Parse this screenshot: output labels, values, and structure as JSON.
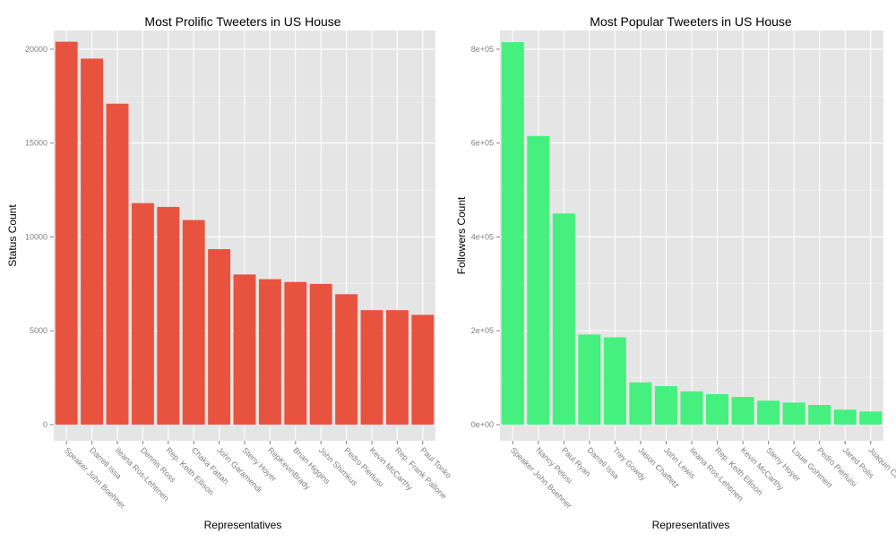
{
  "chart_data": [
    {
      "type": "bar",
      "title": "Most Prolific Tweeters in US House",
      "xlabel": "Representatives",
      "ylabel": "Status Count",
      "color": "#e8533f",
      "ylim": [
        0,
        21000
      ],
      "yticks": [
        0,
        5000,
        10000,
        15000,
        20000
      ],
      "ytick_labels": [
        "0",
        "5000",
        "10000",
        "15000",
        "20000"
      ],
      "grid": true,
      "categories": [
        "Speaker John Boehner",
        "Darrell Issa",
        "Ileana Ros-Lehtinen",
        "Dennis Ross",
        "Rep. Keith Ellison",
        "Chaka Fattah",
        "John Garamendi",
        "Steny Hoyer",
        "RepKevinBrady",
        "Brian Higgins",
        "John Shimkus",
        "Pedro Pierluisi",
        "Kevin McCarthy",
        "Rep. Frank Pallone",
        "Paul Tonko"
      ],
      "values": [
        20400,
        19500,
        17100,
        11800,
        11600,
        10900,
        9350,
        8000,
        7750,
        7600,
        7500,
        6950,
        6100,
        6100,
        5850
      ]
    },
    {
      "type": "bar",
      "title": "Most Popular Tweeters in US House",
      "xlabel": "Representatives",
      "ylabel": "Followers Count",
      "color": "#45f07e",
      "ylim": [
        0,
        840000
      ],
      "yticks": [
        0,
        200000,
        400000,
        600000,
        800000
      ],
      "ytick_labels": [
        "0e+00",
        "2e+05",
        "4e+05",
        "6e+05",
        "8e+05"
      ],
      "grid": true,
      "categories": [
        "Speaker John Boehner",
        "Nancy Pelosi",
        "Paul Ryan",
        "Darrell Issa",
        "Trey Gowdy",
        "Jason Chaffetz",
        "John Lewis",
        "Ileana Ros-Lehtinen",
        "Rep. Keith Ellison",
        "Kevin McCarthy",
        "Steny Hoyer",
        "Louie Gohmert",
        "Pedro Pierluisi",
        "Jared Polis",
        "Joaquin Castro"
      ],
      "values": [
        815000,
        615000,
        450000,
        192000,
        186000,
        90000,
        82000,
        71000,
        65000,
        59000,
        51000,
        47000,
        42000,
        32000,
        28000
      ]
    }
  ]
}
